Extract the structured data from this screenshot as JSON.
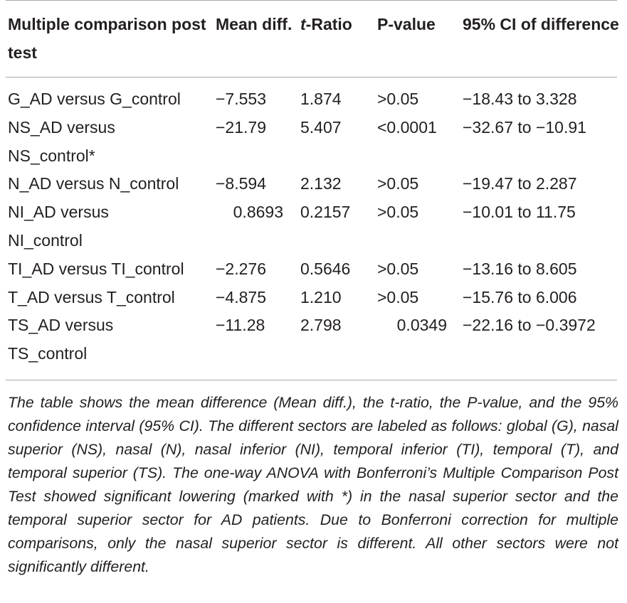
{
  "table": {
    "headers": {
      "comparison": "Multiple comparison post test",
      "mean_diff": "Mean diff.",
      "t_ratio_italic": "t",
      "t_ratio_rest": "-Ratio",
      "p_value": "P-value",
      "ci": "95% CI of difference"
    },
    "rows": [
      {
        "label": "G_AD versus G_control",
        "mean": "−7.553",
        "t": "1.874",
        "p": ">0.05",
        "ci": "−18.43 to 3.328"
      },
      {
        "label": "NS_AD versus NS_control*",
        "mean": "−21.79",
        "t": "5.407",
        "p": "<0.0001",
        "ci": "−32.67 to −10.91"
      },
      {
        "label": "N_AD versus N_control",
        "mean": "−8.594",
        "t": "2.132",
        "p": ">0.05",
        "ci": "−19.47 to 2.287"
      },
      {
        "label": "NI_AD versus NI_control",
        "mean": "0.8693",
        "t": "0.2157",
        "p": ">0.05",
        "ci": "−10.01 to 11.75"
      },
      {
        "label": "TI_AD versus TI_control",
        "mean": "−2.276",
        "t": "0.5646",
        "p": ">0.05",
        "ci": "−13.16 to 8.605"
      },
      {
        "label": "T_AD versus T_control",
        "mean": "−4.875",
        "t": "1.210",
        "p": ">0.05",
        "ci": "−15.76 to 6.006"
      },
      {
        "label": "TS_AD versus TS_control",
        "mean": "−11.28",
        "t": "2.798",
        "p": "0.0349",
        "ci": "−22.16 to −0.3972"
      }
    ]
  },
  "caption": "The table shows the mean difference (Mean diff.), the t-ratio, the P-value, and the 95% confidence interval (95% CI). The different sectors are labeled as follows: global (G), nasal superior (NS), nasal (N), nasal inferior (NI), temporal inferior (TI), temporal (T), and temporal superior (TS). The one-way ANOVA with Bonferroni’s Multiple Comparison Post Test showed significant lowering (marked with *) in the nasal superior sector and the temporal superior sector for AD patients. Due to Bonferroni correction for multiple comparisons, only the nasal superior sector is different. All other sectors were not significantly different."
}
